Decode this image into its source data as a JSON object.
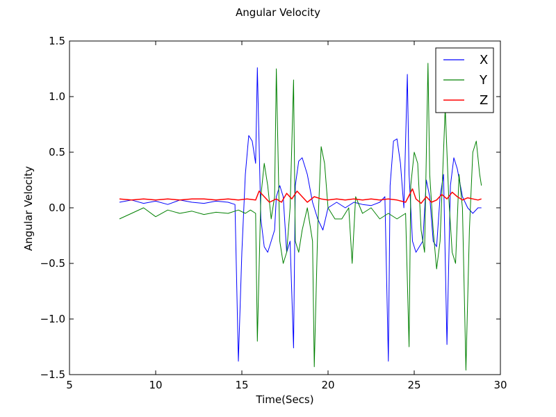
{
  "chart_data": {
    "type": "line",
    "title": "Angular Velocity",
    "xlabel": "Time(Secs)",
    "ylabel": "Angular Velocity",
    "xlim": [
      5,
      30
    ],
    "ylim": [
      -1.5,
      1.5
    ],
    "x_ticks": [
      5,
      10,
      15,
      20,
      25,
      30
    ],
    "y_ticks": [
      -1.5,
      -1.0,
      -0.5,
      0.0,
      0.5,
      1.0,
      1.5
    ],
    "x_tick_labels": [
      "5",
      "10",
      "15",
      "20",
      "25",
      "30"
    ],
    "y_tick_labels": [
      "−1.5",
      "−1.0",
      "−0.5",
      "0.0",
      "0.5",
      "1.0",
      "1.5"
    ],
    "grid": false,
    "legend_position": "top-right",
    "series": [
      {
        "name": "X",
        "color": "#0000ff",
        "x": [
          7.9,
          8.6,
          9.3,
          10.0,
          10.7,
          11.4,
          12.1,
          12.8,
          13.5,
          14.2,
          14.6,
          14.8,
          15.0,
          15.2,
          15.4,
          15.6,
          15.8,
          15.9,
          16.1,
          16.3,
          16.5,
          16.7,
          16.9,
          17.0,
          17.2,
          17.4,
          17.6,
          17.8,
          18.0,
          18.1,
          18.3,
          18.5,
          18.8,
          19.1,
          19.4,
          19.7,
          20.0,
          20.5,
          21.0,
          21.5,
          22.0,
          22.5,
          23.0,
          23.3,
          23.5,
          23.6,
          23.8,
          24.0,
          24.2,
          24.4,
          24.6,
          24.7,
          24.9,
          25.1,
          25.3,
          25.5,
          25.7,
          25.9,
          26.1,
          26.3,
          26.5,
          26.7,
          26.9,
          27.1,
          27.3,
          27.5,
          27.8,
          28.1,
          28.4,
          28.7,
          28.9
        ],
        "y": [
          0.05,
          0.07,
          0.04,
          0.06,
          0.03,
          0.07,
          0.05,
          0.04,
          0.06,
          0.05,
          0.03,
          -1.38,
          -0.4,
          0.3,
          0.65,
          0.6,
          0.4,
          1.26,
          -0.1,
          -0.35,
          -0.4,
          -0.3,
          -0.2,
          0.1,
          0.2,
          0.1,
          -0.4,
          -0.3,
          -1.26,
          0.2,
          0.42,
          0.45,
          0.3,
          0.05,
          -0.1,
          -0.2,
          0.0,
          0.05,
          0.0,
          0.05,
          0.03,
          0.02,
          0.05,
          0.1,
          -1.38,
          0.2,
          0.6,
          0.62,
          0.4,
          0.0,
          1.2,
          0.3,
          -0.3,
          -0.4,
          -0.35,
          -0.3,
          0.25,
          0.1,
          -0.3,
          -0.35,
          0.1,
          0.3,
          -1.23,
          0.2,
          0.45,
          0.35,
          0.1,
          0.0,
          -0.05,
          0.0,
          0.0
        ]
      },
      {
        "name": "Y",
        "color": "#008000",
        "x": [
          7.9,
          8.6,
          9.3,
          10.0,
          10.7,
          11.4,
          12.1,
          12.8,
          13.5,
          14.2,
          14.8,
          15.2,
          15.5,
          15.8,
          15.9,
          16.1,
          16.3,
          16.5,
          16.7,
          16.9,
          17.0,
          17.2,
          17.4,
          17.6,
          17.8,
          18.0,
          18.1,
          18.3,
          18.5,
          18.8,
          19.1,
          19.2,
          19.4,
          19.6,
          19.8,
          20.0,
          20.4,
          20.8,
          21.2,
          21.4,
          21.6,
          22.0,
          22.5,
          23.0,
          23.5,
          24.0,
          24.5,
          24.7,
          24.8,
          25.0,
          25.2,
          25.4,
          25.6,
          25.8,
          25.9,
          26.1,
          26.3,
          26.5,
          26.8,
          27.0,
          27.2,
          27.4,
          27.6,
          27.8,
          28.0,
          28.2,
          28.4,
          28.6,
          28.8,
          28.9
        ],
        "y": [
          -0.1,
          -0.05,
          0.0,
          -0.08,
          -0.02,
          -0.05,
          -0.03,
          -0.06,
          -0.04,
          -0.05,
          -0.02,
          -0.05,
          -0.02,
          -0.05,
          -1.2,
          0.1,
          0.4,
          0.2,
          -0.1,
          0.1,
          1.25,
          -0.3,
          -0.5,
          -0.4,
          0.0,
          1.15,
          -0.3,
          -0.4,
          -0.2,
          0.0,
          -0.3,
          -1.43,
          -0.2,
          0.55,
          0.4,
          0.0,
          -0.1,
          -0.1,
          0.0,
          -0.5,
          0.1,
          -0.05,
          0.0,
          -0.1,
          -0.05,
          -0.1,
          -0.05,
          -1.25,
          0.2,
          0.5,
          0.4,
          -0.2,
          -0.4,
          1.3,
          0.3,
          -0.2,
          -0.55,
          -0.3,
          0.9,
          0.1,
          -0.4,
          -0.5,
          0.3,
          0.0,
          -1.46,
          -0.2,
          0.5,
          0.6,
          0.3,
          0.2
        ]
      },
      {
        "name": "Z",
        "color": "#ff0000",
        "x": [
          7.9,
          8.6,
          9.3,
          10.0,
          10.7,
          11.4,
          12.1,
          12.8,
          13.5,
          14.2,
          14.8,
          15.3,
          15.8,
          16.0,
          16.3,
          16.6,
          17.0,
          17.3,
          17.6,
          17.9,
          18.2,
          18.5,
          18.8,
          19.2,
          19.6,
          20.0,
          20.5,
          21.0,
          21.5,
          22.0,
          22.5,
          23.0,
          23.5,
          24.0,
          24.5,
          24.9,
          25.1,
          25.4,
          25.7,
          26.0,
          26.3,
          26.6,
          26.9,
          27.2,
          27.5,
          27.8,
          28.1,
          28.4,
          28.7,
          28.9
        ],
        "y": [
          0.08,
          0.07,
          0.08,
          0.07,
          0.08,
          0.07,
          0.08,
          0.08,
          0.07,
          0.08,
          0.07,
          0.08,
          0.07,
          0.15,
          0.1,
          0.05,
          0.08,
          0.05,
          0.13,
          0.08,
          0.15,
          0.1,
          0.05,
          0.1,
          0.08,
          0.07,
          0.08,
          0.07,
          0.08,
          0.07,
          0.08,
          0.07,
          0.08,
          0.07,
          0.05,
          0.17,
          0.08,
          0.04,
          0.1,
          0.05,
          0.07,
          0.12,
          0.08,
          0.14,
          0.1,
          0.07,
          0.09,
          0.08,
          0.07,
          0.08
        ]
      }
    ]
  }
}
